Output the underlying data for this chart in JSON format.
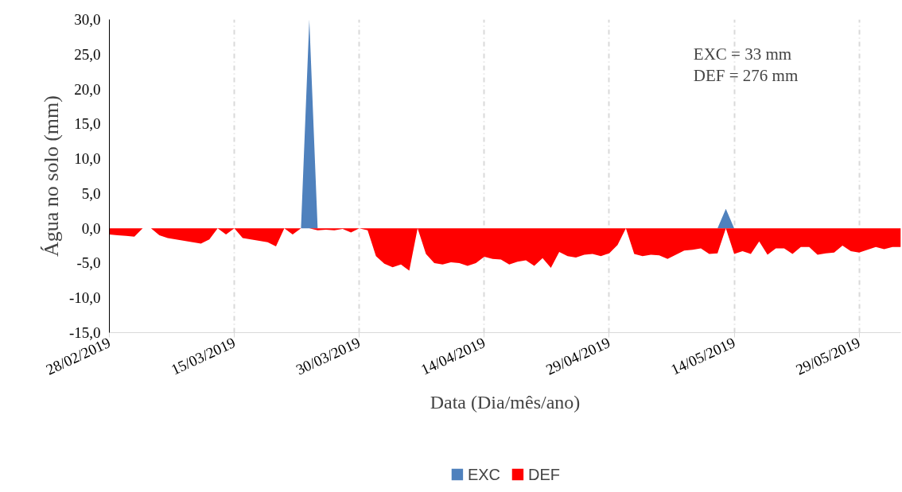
{
  "chart_data": {
    "type": "area",
    "xlabel": "Data (Dia/mês/ano)",
    "ylabel": "Água no solo (mm)",
    "annotations": [
      "EXC = 33 mm",
      "DEF = 276 mm"
    ],
    "x": [
      "2019-02-28",
      "2019-03-01",
      "2019-03-02",
      "2019-03-03",
      "2019-03-04",
      "2019-03-05",
      "2019-03-06",
      "2019-03-07",
      "2019-03-08",
      "2019-03-09",
      "2019-03-10",
      "2019-03-11",
      "2019-03-12",
      "2019-03-13",
      "2019-03-14",
      "2019-03-15",
      "2019-03-16",
      "2019-03-17",
      "2019-03-18",
      "2019-03-19",
      "2019-03-20",
      "2019-03-21",
      "2019-03-22",
      "2019-03-23",
      "2019-03-24",
      "2019-03-25",
      "2019-03-26",
      "2019-03-27",
      "2019-03-28",
      "2019-03-29",
      "2019-03-30",
      "2019-03-31",
      "2019-04-01",
      "2019-04-02",
      "2019-04-03",
      "2019-04-04",
      "2019-04-05",
      "2019-04-06",
      "2019-04-07",
      "2019-04-08",
      "2019-04-09",
      "2019-04-10",
      "2019-04-11",
      "2019-04-12",
      "2019-04-13",
      "2019-04-14",
      "2019-04-15",
      "2019-04-16",
      "2019-04-17",
      "2019-04-18",
      "2019-04-19",
      "2019-04-20",
      "2019-04-21",
      "2019-04-22",
      "2019-04-23",
      "2019-04-24",
      "2019-04-25",
      "2019-04-26",
      "2019-04-27",
      "2019-04-28",
      "2019-04-29",
      "2019-04-30",
      "2019-05-01",
      "2019-05-02",
      "2019-05-03",
      "2019-05-04",
      "2019-05-05",
      "2019-05-06",
      "2019-05-07",
      "2019-05-08",
      "2019-05-09",
      "2019-05-10",
      "2019-05-11",
      "2019-05-12",
      "2019-05-13",
      "2019-05-14",
      "2019-05-15",
      "2019-05-16",
      "2019-05-17",
      "2019-05-18",
      "2019-05-19",
      "2019-05-20",
      "2019-05-21",
      "2019-05-22",
      "2019-05-23",
      "2019-05-24",
      "2019-05-25",
      "2019-05-26",
      "2019-05-27",
      "2019-05-28",
      "2019-05-29",
      "2019-05-30",
      "2019-05-31",
      "2019-06-01",
      "2019-06-02",
      "2019-06-03"
    ],
    "series": [
      {
        "name": "EXC",
        "color": "#4f81bd",
        "values": [
          0,
          0,
          0,
          0,
          0,
          0,
          0,
          0,
          0,
          0,
          0,
          0,
          0,
          0,
          0,
          0,
          0,
          0,
          0,
          0,
          0,
          0,
          0,
          0,
          30.0,
          0,
          0,
          0,
          0,
          0,
          0,
          0,
          0,
          0,
          0,
          0,
          0,
          0,
          0,
          0,
          0,
          0,
          0,
          0,
          0,
          0,
          0,
          0,
          0,
          0,
          0,
          0,
          0,
          0,
          0,
          0,
          0,
          0,
          0,
          0,
          0,
          0,
          0,
          0,
          0,
          0,
          0,
          0,
          0,
          0,
          0,
          0,
          0,
          0,
          2.8,
          0,
          0,
          0,
          0,
          0,
          0,
          0,
          0,
          0,
          0,
          0,
          0,
          0,
          0,
          0,
          0,
          0,
          0,
          0,
          0,
          0
        ]
      },
      {
        "name": "DEF",
        "color": "#ff0000",
        "values": [
          -0.9,
          -1.0,
          -1.1,
          -1.2,
          0,
          0,
          -1.0,
          -1.4,
          -1.6,
          -1.8,
          -2.0,
          -2.2,
          -1.6,
          0,
          -0.9,
          0,
          -1.4,
          -1.6,
          -1.8,
          -2.0,
          -2.6,
          0,
          -0.9,
          0,
          0,
          -0.3,
          -0.2,
          -0.3,
          -0.1,
          -0.6,
          0,
          -0.3,
          -4.0,
          -5.1,
          -5.6,
          -5.2,
          -6.1,
          0,
          -3.7,
          -5.0,
          -5.2,
          -4.9,
          -5.0,
          -5.4,
          -5.0,
          -4.1,
          -4.4,
          -4.5,
          -5.2,
          -4.8,
          -4.6,
          -5.4,
          -4.3,
          -5.7,
          -3.4,
          -4.0,
          -4.2,
          -3.8,
          -3.7,
          -4.0,
          -3.6,
          -2.4,
          0,
          -3.7,
          -4.0,
          -3.8,
          -3.9,
          -4.4,
          -3.8,
          -3.2,
          -3.1,
          -2.9,
          -3.7,
          -3.6,
          0,
          -3.7,
          -3.3,
          -3.7,
          -1.9,
          -3.8,
          -2.9,
          -2.9,
          -3.7,
          -2.7,
          -2.7,
          -3.8,
          -3.6,
          -3.5,
          -2.5,
          -3.3,
          -3.5,
          -3.1,
          -2.7,
          -3.0,
          -2.7,
          -2.7
        ]
      }
    ],
    "xlim": [
      "2019-02-28",
      "2019-06-03"
    ],
    "xticks": [
      {
        "value": "2019-02-28",
        "label": "28/02/2019"
      },
      {
        "value": "2019-03-15",
        "label": "15/03/2019"
      },
      {
        "value": "2019-03-30",
        "label": "30/03/2019"
      },
      {
        "value": "2019-04-14",
        "label": "14/04/2019"
      },
      {
        "value": "2019-04-29",
        "label": "29/04/2019"
      },
      {
        "value": "2019-05-14",
        "label": "14/05/2019"
      },
      {
        "value": "2019-05-29",
        "label": "29/05/2019"
      }
    ],
    "ylim": [
      -15,
      30
    ],
    "yticks": [
      {
        "value": 30,
        "label": "30,0"
      },
      {
        "value": 25,
        "label": "25,0"
      },
      {
        "value": 20,
        "label": "20,0"
      },
      {
        "value": 15,
        "label": "15,0"
      },
      {
        "value": 10,
        "label": "10,0"
      },
      {
        "value": 5,
        "label": "5,0"
      },
      {
        "value": 0,
        "label": "0,0"
      },
      {
        "value": -5,
        "label": "-5,0"
      },
      {
        "value": -10,
        "label": "-10,0"
      },
      {
        "value": -15,
        "label": "-15,0"
      }
    ],
    "grid": "x",
    "legend": "bottom"
  }
}
